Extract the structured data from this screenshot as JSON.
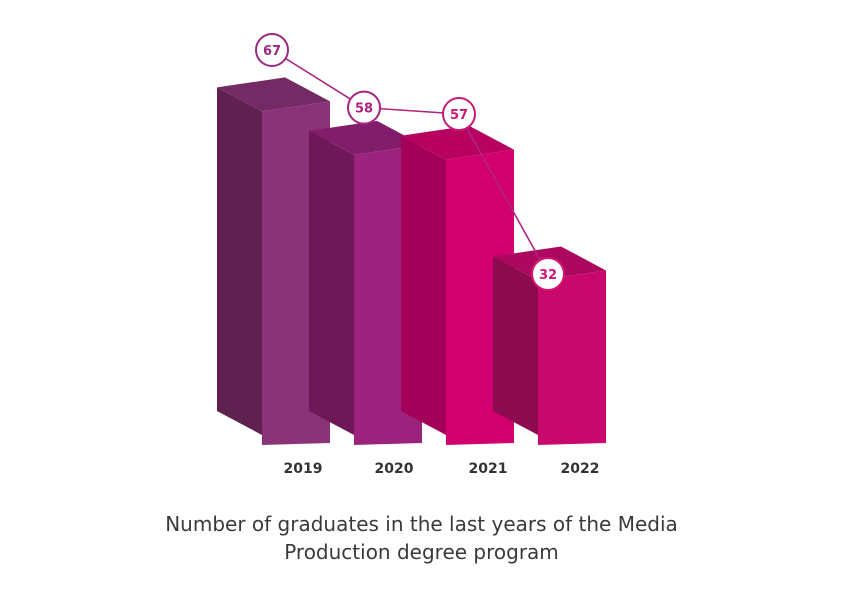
{
  "chart_data": {
    "type": "bar",
    "categories": [
      "2019",
      "2020",
      "2021",
      "2022"
    ],
    "values": [
      67,
      58,
      57,
      32
    ],
    "title_lines": [
      "Number of graduates in the last years of the Media",
      "Production degree program"
    ],
    "xlabel": "",
    "ylabel": "",
    "grid": false,
    "legend": "none",
    "colors": {
      "front": [
        "#8a3378",
        "#9c237d",
        "#d1006e",
        "#c8086c"
      ],
      "side": [
        "#5e2150",
        "#6f1857",
        "#a3005a",
        "#8c0a4e"
      ],
      "top": [
        "#732a65",
        "#811d6a",
        "#b7025f",
        "#ad0860"
      ],
      "marker": [
        "#9c2a82",
        "#a8237f",
        "#c81a76",
        "#d6146f"
      ]
    }
  }
}
